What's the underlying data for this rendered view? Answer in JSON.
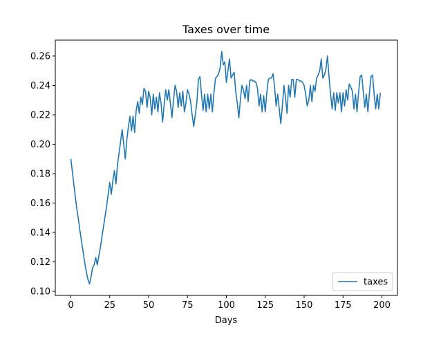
{
  "chart_data": {
    "type": "line",
    "title": "Taxes over time",
    "xlabel": "Days",
    "ylabel": "",
    "xlim": [
      -10,
      210
    ],
    "ylim": [
      0.0972,
      0.2708
    ],
    "xticks": [
      0,
      25,
      50,
      75,
      100,
      125,
      150,
      175,
      200
    ],
    "yticks": [
      0.1,
      0.12,
      0.14,
      0.16,
      0.18,
      0.2,
      0.22,
      0.24,
      0.26
    ],
    "grid": false,
    "legend_position": "lower-right",
    "series": [
      {
        "name": "taxes",
        "color": "#1f77b4",
        "x": [
          0,
          1,
          2,
          3,
          4,
          5,
          6,
          7,
          8,
          9,
          10,
          11,
          12,
          13,
          14,
          15,
          16,
          17,
          18,
          19,
          20,
          21,
          22,
          23,
          24,
          25,
          26,
          27,
          28,
          29,
          30,
          31,
          32,
          33,
          34,
          35,
          36,
          37,
          38,
          39,
          40,
          41,
          42,
          43,
          44,
          45,
          46,
          47,
          48,
          49,
          50,
          51,
          52,
          53,
          54,
          55,
          56,
          57,
          58,
          59,
          60,
          61,
          62,
          63,
          64,
          65,
          66,
          67,
          68,
          69,
          70,
          71,
          72,
          73,
          74,
          75,
          76,
          77,
          78,
          79,
          80,
          81,
          82,
          83,
          84,
          85,
          86,
          87,
          88,
          89,
          90,
          91,
          92,
          93,
          94,
          95,
          96,
          97,
          98,
          99,
          100,
          101,
          102,
          103,
          104,
          105,
          106,
          107,
          108,
          109,
          110,
          111,
          112,
          113,
          114,
          115,
          116,
          117,
          118,
          119,
          120,
          121,
          122,
          123,
          124,
          125,
          126,
          127,
          128,
          129,
          130,
          131,
          132,
          133,
          134,
          135,
          136,
          137,
          138,
          139,
          140,
          141,
          142,
          143,
          144,
          145,
          146,
          147,
          148,
          149,
          150,
          151,
          152,
          153,
          154,
          155,
          156,
          157,
          158,
          159,
          160,
          161,
          162,
          163,
          164,
          165,
          166,
          167,
          168,
          169,
          170,
          171,
          172,
          173,
          174,
          175,
          176,
          177,
          178,
          179,
          180,
          181,
          182,
          183,
          184,
          185,
          186,
          187,
          188,
          189,
          190,
          191,
          192,
          193,
          194,
          195,
          196,
          197,
          198,
          199
        ],
        "values": [
          0.19,
          0.181,
          0.172,
          0.163,
          0.155,
          0.148,
          0.14,
          0.133,
          0.126,
          0.119,
          0.113,
          0.108,
          0.105,
          0.11,
          0.116,
          0.118,
          0.123,
          0.118,
          0.124,
          0.13,
          0.137,
          0.144,
          0.151,
          0.158,
          0.166,
          0.174,
          0.166,
          0.175,
          0.182,
          0.173,
          0.186,
          0.194,
          0.202,
          0.21,
          0.2,
          0.19,
          0.203,
          0.212,
          0.219,
          0.209,
          0.219,
          0.208,
          0.223,
          0.229,
          0.221,
          0.232,
          0.227,
          0.238,
          0.236,
          0.225,
          0.236,
          0.232,
          0.22,
          0.234,
          0.224,
          0.232,
          0.222,
          0.235,
          0.228,
          0.215,
          0.227,
          0.237,
          0.23,
          0.237,
          0.228,
          0.218,
          0.23,
          0.24,
          0.236,
          0.225,
          0.235,
          0.226,
          0.236,
          0.222,
          0.228,
          0.237,
          0.234,
          0.229,
          0.22,
          0.212,
          0.22,
          0.228,
          0.244,
          0.246,
          0.234,
          0.223,
          0.234,
          0.222,
          0.234,
          0.224,
          0.234,
          0.222,
          0.235,
          0.245,
          0.246,
          0.248,
          0.252,
          0.263,
          0.254,
          0.256,
          0.242,
          0.25,
          0.258,
          0.245,
          0.247,
          0.249,
          0.236,
          0.228,
          0.218,
          0.23,
          0.24,
          0.237,
          0.231,
          0.24,
          0.229,
          0.243,
          0.244,
          0.243,
          0.243,
          0.242,
          0.238,
          0.226,
          0.234,
          0.222,
          0.233,
          0.222,
          0.235,
          0.244,
          0.245,
          0.245,
          0.248,
          0.239,
          0.226,
          0.234,
          0.224,
          0.214,
          0.226,
          0.24,
          0.232,
          0.221,
          0.24,
          0.232,
          0.244,
          0.244,
          0.232,
          0.244,
          0.244,
          0.243,
          0.243,
          0.242,
          0.24,
          0.234,
          0.226,
          0.23,
          0.24,
          0.229,
          0.24,
          0.236,
          0.245,
          0.247,
          0.25,
          0.258,
          0.245,
          0.247,
          0.251,
          0.26,
          0.246,
          0.234,
          0.224,
          0.235,
          0.223,
          0.235,
          0.228,
          0.235,
          0.222,
          0.235,
          0.226,
          0.237,
          0.23,
          0.241,
          0.239,
          0.236,
          0.224,
          0.234,
          0.222,
          0.235,
          0.246,
          0.247,
          0.236,
          0.225,
          0.234,
          0.222,
          0.235,
          0.246,
          0.247,
          0.234,
          0.224,
          0.234,
          0.224,
          0.235
        ]
      }
    ]
  }
}
